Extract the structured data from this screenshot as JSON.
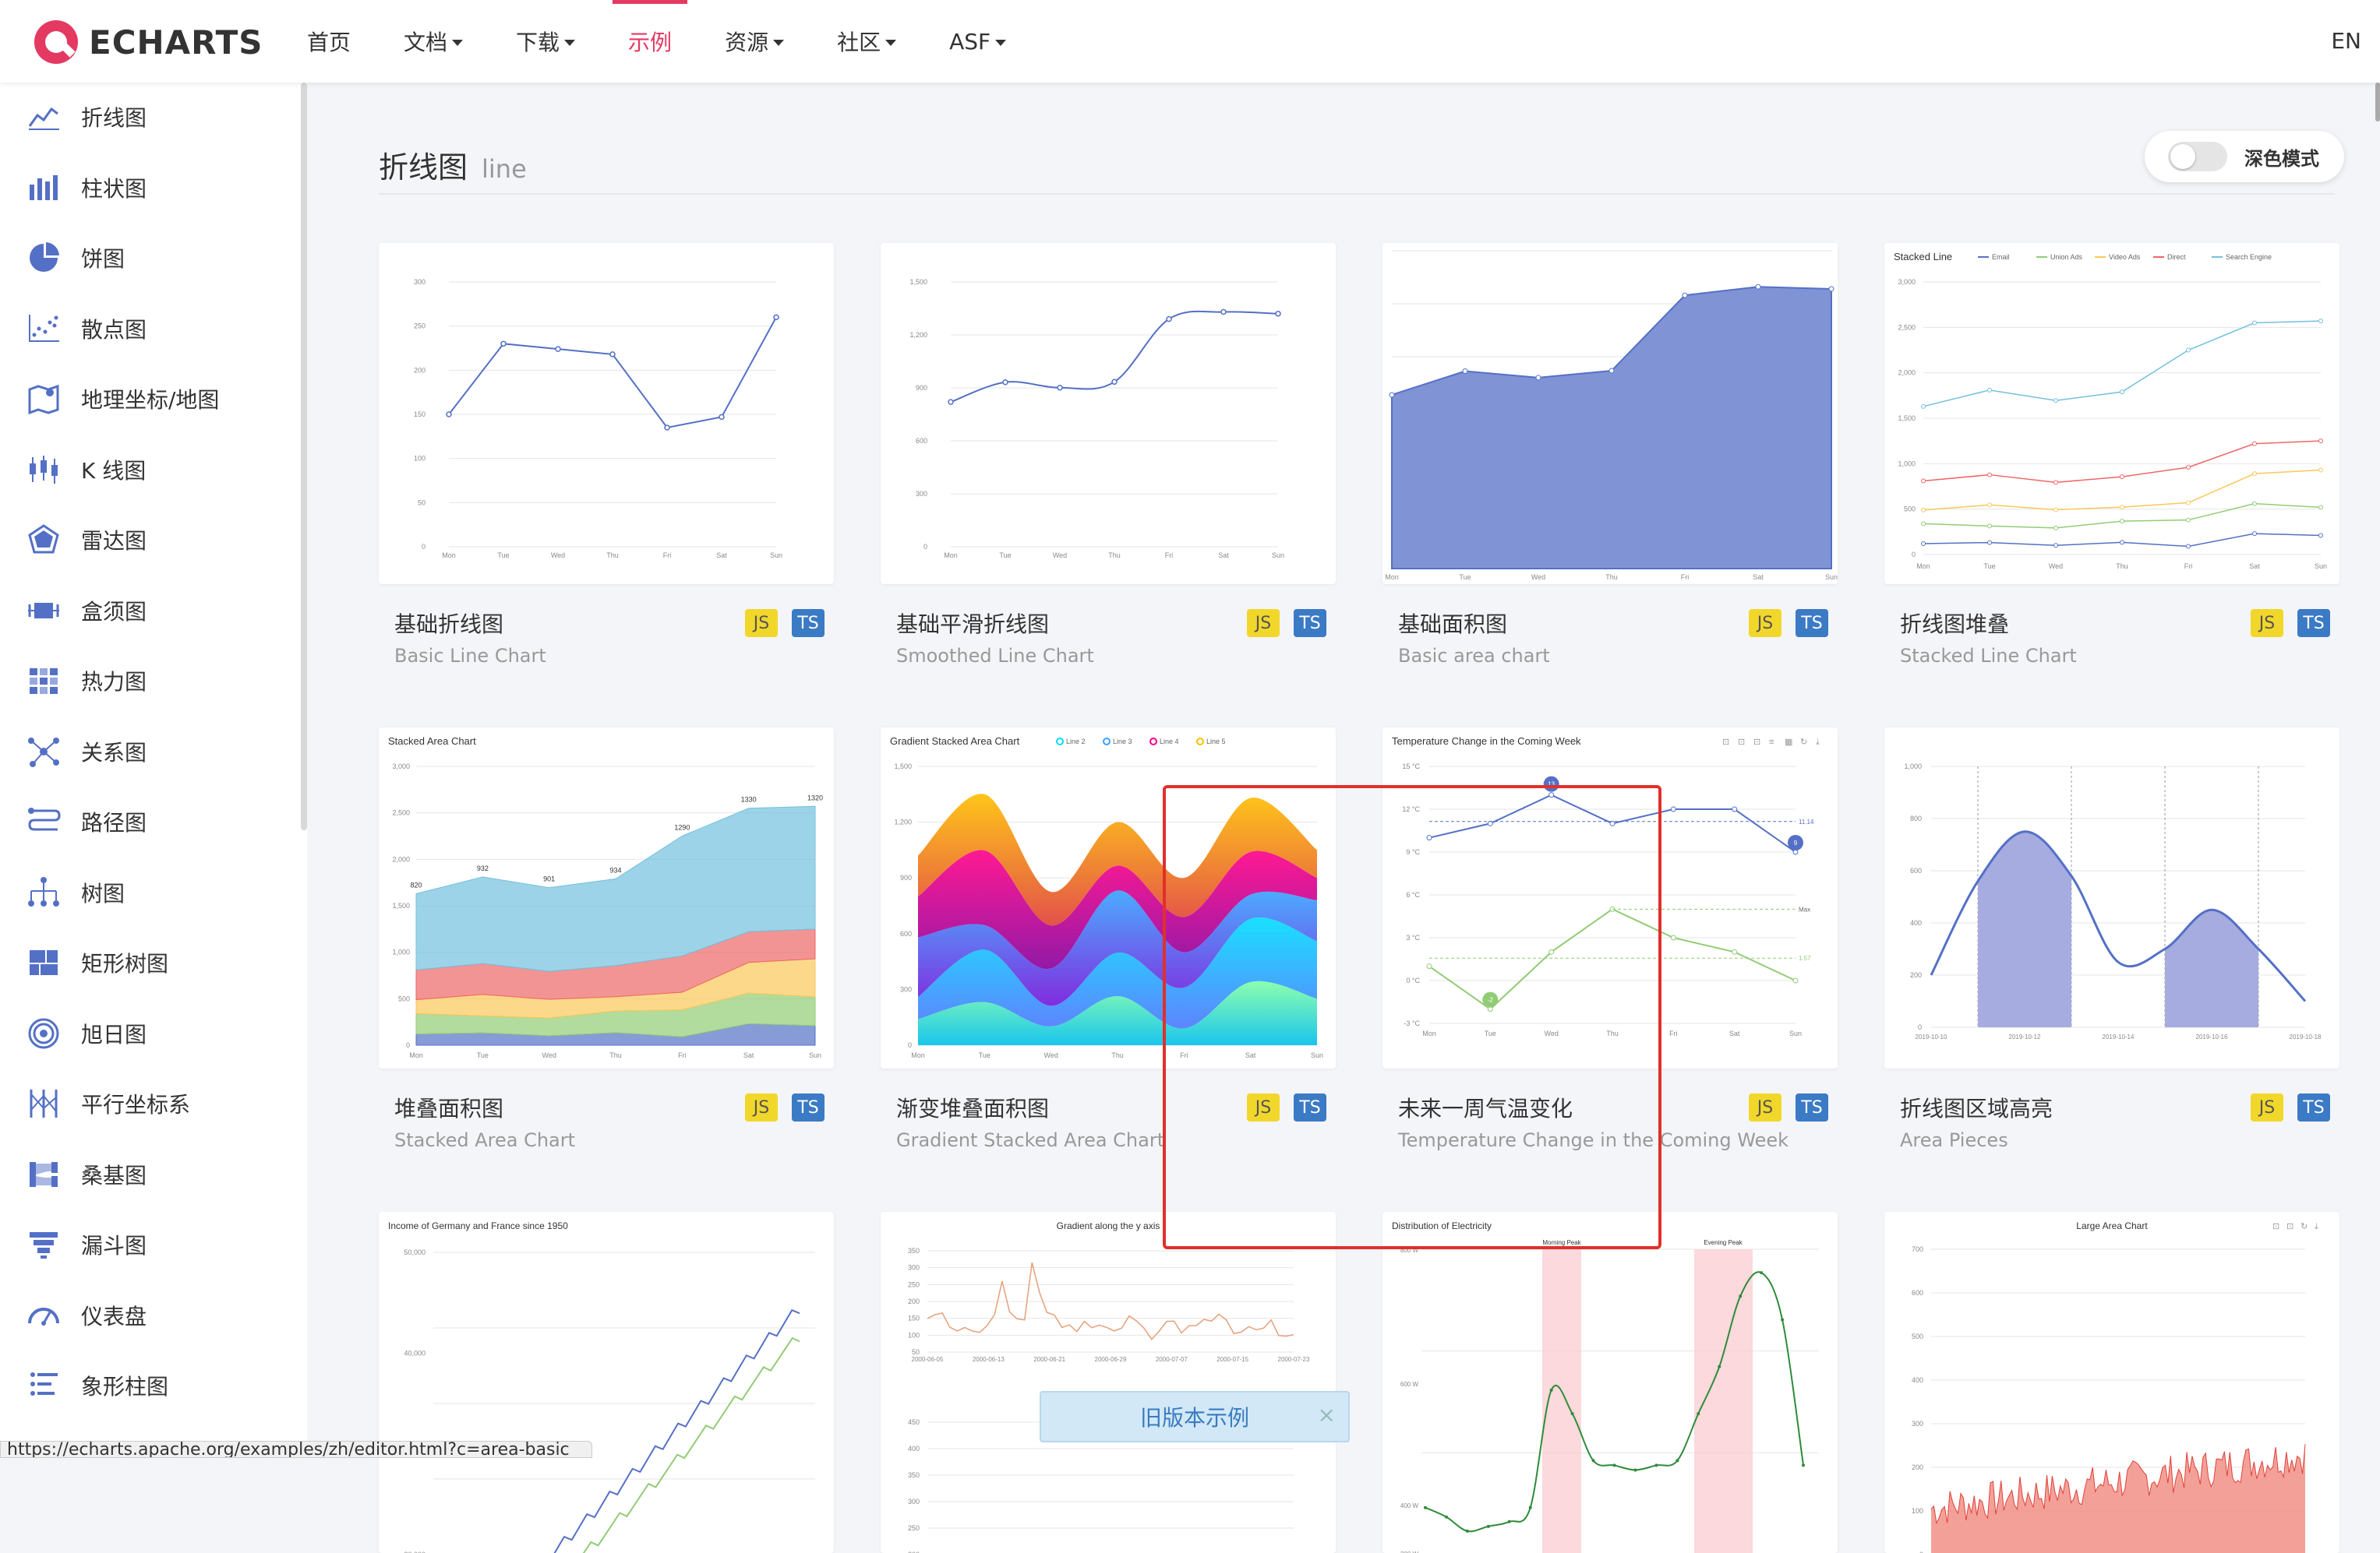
{
  "brand": {
    "logo_text": "ECHARTS"
  },
  "nav": {
    "items": [
      {
        "label": "首页",
        "dropdown": false,
        "active": false
      },
      {
        "label": "文档",
        "dropdown": true,
        "active": false
      },
      {
        "label": "下载",
        "dropdown": true,
        "active": false
      },
      {
        "label": "示例",
        "dropdown": false,
        "active": true
      },
      {
        "label": "资源",
        "dropdown": true,
        "active": false
      },
      {
        "label": "社区",
        "dropdown": true,
        "active": false
      },
      {
        "label": "ASF",
        "dropdown": true,
        "active": false
      }
    ],
    "lang": "EN"
  },
  "sidebar": {
    "items": [
      {
        "label": "折线图",
        "icon": "line-chart-icon"
      },
      {
        "label": "柱状图",
        "icon": "bar-chart-icon"
      },
      {
        "label": "饼图",
        "icon": "pie-chart-icon"
      },
      {
        "label": "散点图",
        "icon": "scatter-chart-icon"
      },
      {
        "label": "地理坐标/地图",
        "icon": "map-icon"
      },
      {
        "label": "K 线图",
        "icon": "candlestick-icon"
      },
      {
        "label": "雷达图",
        "icon": "radar-icon"
      },
      {
        "label": "盒须图",
        "icon": "boxplot-icon"
      },
      {
        "label": "热力图",
        "icon": "heatmap-icon"
      },
      {
        "label": "关系图",
        "icon": "graph-icon"
      },
      {
        "label": "路径图",
        "icon": "lines-icon"
      },
      {
        "label": "树图",
        "icon": "tree-icon"
      },
      {
        "label": "矩形树图",
        "icon": "treemap-icon"
      },
      {
        "label": "旭日图",
        "icon": "sunburst-icon"
      },
      {
        "label": "平行坐标系",
        "icon": "parallel-icon"
      },
      {
        "label": "桑基图",
        "icon": "sankey-icon"
      },
      {
        "label": "漏斗图",
        "icon": "funnel-icon"
      },
      {
        "label": "仪表盘",
        "icon": "gauge-icon"
      },
      {
        "label": "象形柱图",
        "icon": "pictorial-bar-icon"
      }
    ]
  },
  "page": {
    "title": "折线图",
    "subtitle": "line",
    "dark_mode_label": "深色模式"
  },
  "badges": {
    "js": "JS",
    "ts": "TS"
  },
  "cards": [
    {
      "title": "基础折线图",
      "subtitle": "Basic Line Chart"
    },
    {
      "title": "基础平滑折线图",
      "subtitle": "Smoothed Line Chart"
    },
    {
      "title": "基础面积图",
      "subtitle": "Basic area chart"
    },
    {
      "title": "折线图堆叠",
      "subtitle": "Stacked Line Chart"
    },
    {
      "title": "堆叠面积图",
      "subtitle": "Stacked Area Chart"
    },
    {
      "title": "渐变堆叠面积图",
      "subtitle": "Gradient Stacked Area Chart"
    },
    {
      "title": "未来一周气温变化",
      "subtitle": "Temperature Change in the Coming Week"
    },
    {
      "title": "折线图区域高亮",
      "subtitle": "Area Pieces"
    },
    {
      "title": "",
      "subtitle": ""
    },
    {
      "title": "",
      "subtitle": ""
    },
    {
      "title": "",
      "subtitle": ""
    },
    {
      "title": "",
      "subtitle": ""
    }
  ],
  "thumb_text": {
    "t4": "Stacked Line",
    "t5": "Stacked Area Chart",
    "t6": "Gradient Stacked Area Chart",
    "t7": "Temperature Change in the Coming Week",
    "t9": "Income of Germany and France since 1950",
    "t10": "Gradient along the y axis",
    "t11": "Distribution of Electricity",
    "t12": "Large Area Chart",
    "days": [
      "Mon",
      "Tue",
      "Wed",
      "Thu",
      "Fri",
      "Sat",
      "Sun"
    ],
    "legend4": [
      "Email",
      "Union Ads",
      "Video Ads",
      "Direct",
      "Search Engine"
    ],
    "legend6": [
      "Line 2",
      "Line 3",
      "Line 4",
      "Line 5"
    ],
    "morning_peak": "Morning Peak",
    "evening_peak": "Evening Peak"
  },
  "footer": {
    "old_version": "旧版本示例",
    "close": "×",
    "status_url": "https://echarts.apache.org/examples/zh/editor.html?c=area-basic"
  },
  "colors": {
    "accent": "#e43961",
    "blue": "#5470c6",
    "green": "#91cc75",
    "yellow": "#fac858",
    "red": "#ee6666",
    "cyan": "#73c0de"
  }
}
